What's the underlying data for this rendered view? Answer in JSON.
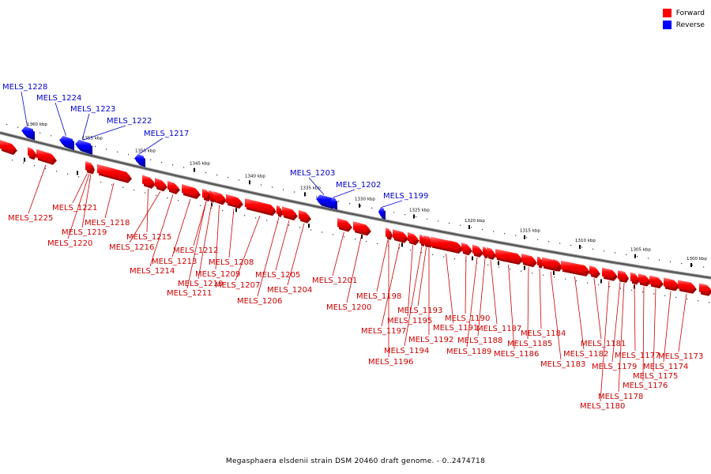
{
  "legend": {
    "forward": {
      "label": "Forward",
      "color": "#ff0000"
    },
    "reverse": {
      "label": "Reverse",
      "color": "#0000ff"
    }
  },
  "caption": "Megasphaera elsdenii strain DSM 20460 draft genome. - 0..2474718",
  "ticks": [
    {
      "label": "1360 kbp"
    },
    {
      "label": "1355 kbp"
    },
    {
      "label": "1350 kbp"
    },
    {
      "label": "1345 kbp"
    },
    {
      "label": "1340 kbp"
    },
    {
      "label": "1335 kbp"
    },
    {
      "label": "1330 kbp"
    },
    {
      "label": "1325 kbp"
    },
    {
      "label": "1320 kbp"
    },
    {
      "label": "1315 kbp"
    },
    {
      "label": "1310 kbp"
    },
    {
      "label": "1305 kbp"
    },
    {
      "label": "1300 kbp"
    }
  ],
  "genes": [
    {
      "name": "MELS_1228",
      "strand": "reverse"
    },
    {
      "name": "MELS_1224",
      "strand": "reverse"
    },
    {
      "name": "MELS_1223",
      "strand": "reverse"
    },
    {
      "name": "MELS_1222",
      "strand": "reverse"
    },
    {
      "name": "MELS_1217",
      "strand": "reverse"
    },
    {
      "name": "MELS_1203",
      "strand": "reverse"
    },
    {
      "name": "MELS_1202",
      "strand": "reverse"
    },
    {
      "name": "MELS_1199",
      "strand": "reverse"
    },
    {
      "name": "MELS_1225",
      "strand": "forward"
    },
    {
      "name": "MELS_1221",
      "strand": "forward"
    },
    {
      "name": "MELS_1219",
      "strand": "forward"
    },
    {
      "name": "MELS_1220",
      "strand": "forward"
    },
    {
      "name": "MELS_1218",
      "strand": "forward"
    },
    {
      "name": "MELS_1215",
      "strand": "forward"
    },
    {
      "name": "MELS_1216",
      "strand": "forward"
    },
    {
      "name": "MELS_1214",
      "strand": "forward"
    },
    {
      "name": "MELS_1213",
      "strand": "forward"
    },
    {
      "name": "MELS_1212",
      "strand": "forward"
    },
    {
      "name": "MELS_1210",
      "strand": "forward"
    },
    {
      "name": "MELS_1211",
      "strand": "forward"
    },
    {
      "name": "MELS_1209",
      "strand": "forward"
    },
    {
      "name": "MELS_1208",
      "strand": "forward"
    },
    {
      "name": "MELS_1207",
      "strand": "forward"
    },
    {
      "name": "MELS_1206",
      "strand": "forward"
    },
    {
      "name": "MELS_1205",
      "strand": "forward"
    },
    {
      "name": "MELS_1204",
      "strand": "forward"
    },
    {
      "name": "MELS_1201",
      "strand": "forward"
    },
    {
      "name": "MELS_1200",
      "strand": "forward"
    },
    {
      "name": "MELS_1198",
      "strand": "forward"
    },
    {
      "name": "MELS_1197",
      "strand": "forward"
    },
    {
      "name": "MELS_1196",
      "strand": "forward"
    },
    {
      "name": "MELS_1195",
      "strand": "forward"
    },
    {
      "name": "MELS_1194",
      "strand": "forward"
    },
    {
      "name": "MELS_1193",
      "strand": "forward"
    },
    {
      "name": "MELS_1192",
      "strand": "forward"
    },
    {
      "name": "MELS_1191",
      "strand": "forward"
    },
    {
      "name": "MELS_1190",
      "strand": "forward"
    },
    {
      "name": "MELS_1189",
      "strand": "forward"
    },
    {
      "name": "MELS_1188",
      "strand": "forward"
    },
    {
      "name": "MELS_1187",
      "strand": "forward"
    },
    {
      "name": "MELS_1186",
      "strand": "forward"
    },
    {
      "name": "MELS_1185",
      "strand": "forward"
    },
    {
      "name": "MELS_1184",
      "strand": "forward"
    },
    {
      "name": "MELS_1183",
      "strand": "forward"
    },
    {
      "name": "MELS_1182",
      "strand": "forward"
    },
    {
      "name": "MELS_1181",
      "strand": "forward"
    },
    {
      "name": "MELS_1180",
      "strand": "forward"
    },
    {
      "name": "MELS_1179",
      "strand": "forward"
    },
    {
      "name": "MELS_1178",
      "strand": "forward"
    },
    {
      "name": "MELS_1177",
      "strand": "forward"
    },
    {
      "name": "MELS_1176",
      "strand": "forward"
    },
    {
      "name": "MELS_1175",
      "strand": "forward"
    },
    {
      "name": "MELS_1174",
      "strand": "forward"
    },
    {
      "name": "MELS_1173",
      "strand": "forward"
    }
  ]
}
